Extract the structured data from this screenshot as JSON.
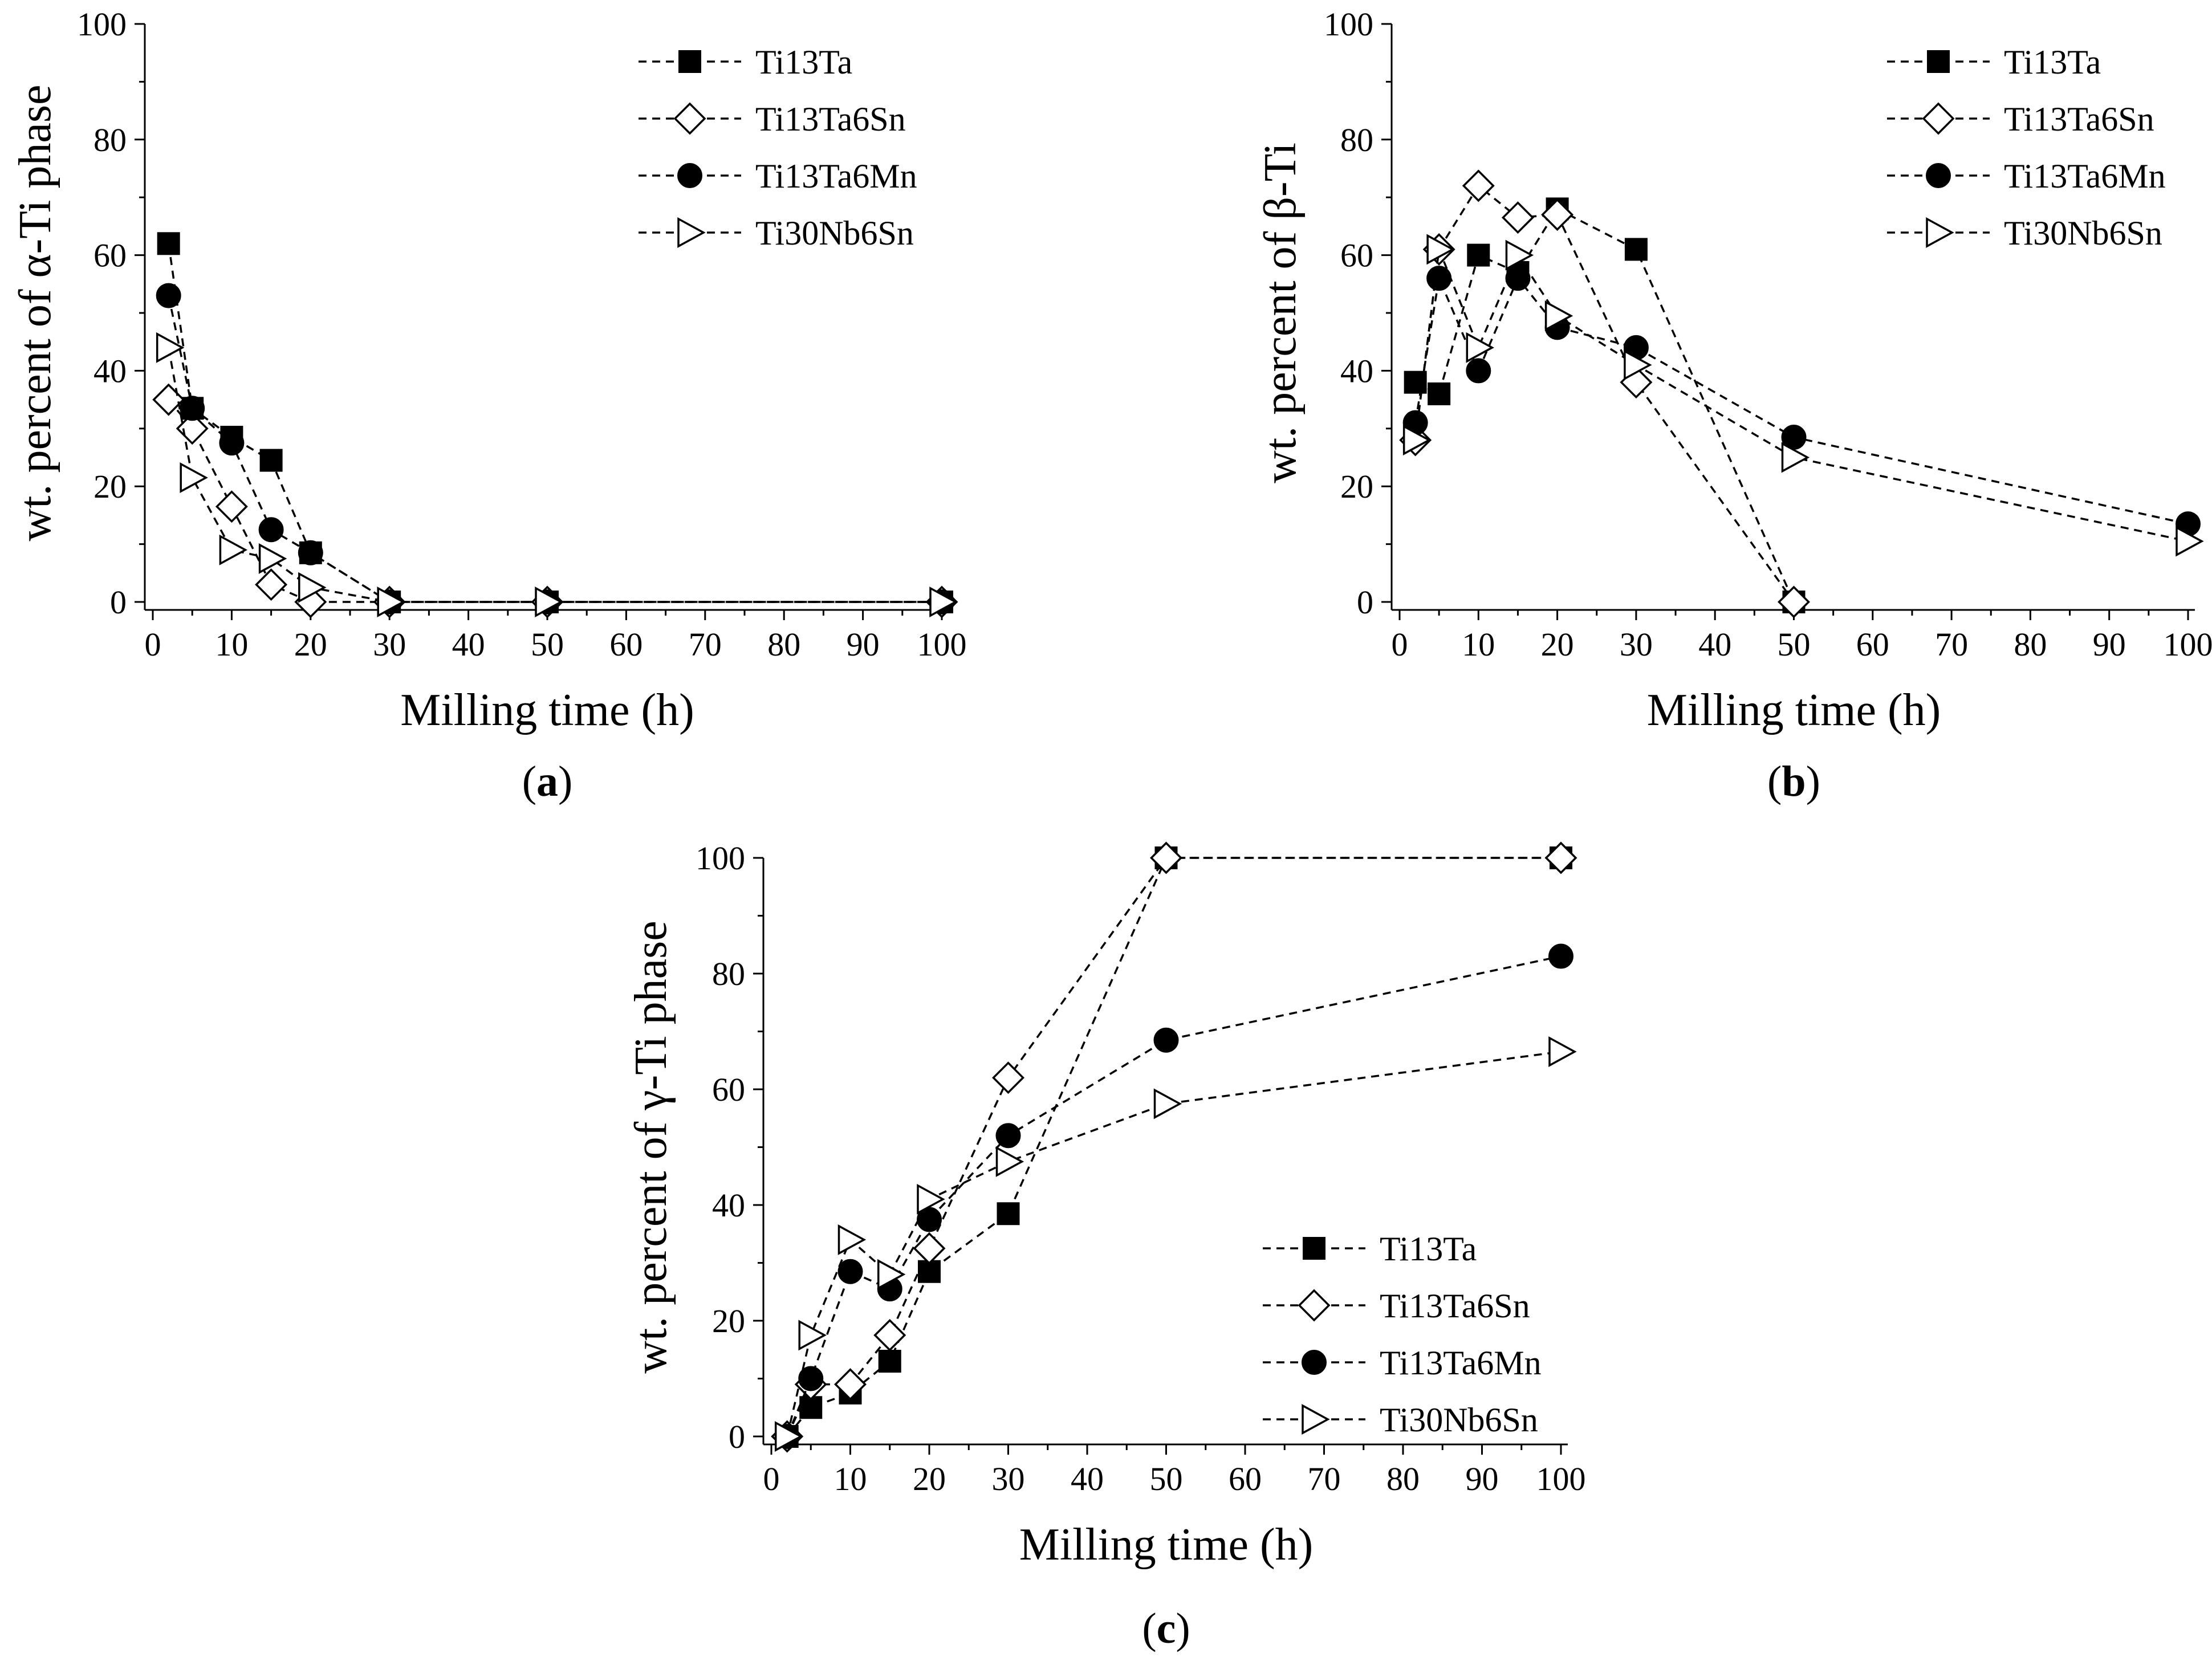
{
  "chart_data": [
    {
      "type": "line",
      "panel": "(a)",
      "panel_letter": "a",
      "xlabel": "Milling time (h)",
      "ylabel": "wt. percent of α-Ti phase",
      "xlim": [
        0,
        100
      ],
      "ylim": [
        0,
        100
      ],
      "xticks": [
        "0",
        "10",
        "20",
        "30",
        "40",
        "50",
        "60",
        "70",
        "80",
        "90",
        "100"
      ],
      "yticks": [
        "0",
        "20",
        "40",
        "60",
        "80",
        "100"
      ],
      "legend_position": "top-right",
      "series": [
        {
          "name": "Ti13Ta",
          "marker": "square-filled",
          "x": [
            2,
            5,
            10,
            15,
            20,
            30,
            50,
            100
          ],
          "y": [
            62,
            33.5,
            28.5,
            24.5,
            8.5,
            0,
            0,
            0
          ]
        },
        {
          "name": "Ti13Ta6Sn",
          "marker": "diamond-open",
          "x": [
            2,
            5,
            10,
            15,
            20,
            30,
            50,
            100
          ],
          "y": [
            35,
            30,
            16.5,
            3,
            0,
            0,
            0,
            0
          ]
        },
        {
          "name": "Ti13Ta6Mn",
          "marker": "circle-filled",
          "x": [
            2,
            5,
            10,
            15,
            20,
            30,
            50,
            100
          ],
          "y": [
            53,
            33.5,
            27.5,
            12.5,
            8.5,
            0,
            0,
            0
          ]
        },
        {
          "name": "Ti30Nb6Sn",
          "marker": "triangle-right-open",
          "x": [
            2,
            5,
            10,
            15,
            20,
            30,
            50,
            100
          ],
          "y": [
            44,
            21.5,
            9,
            7.5,
            2.5,
            0,
            0,
            0
          ]
        }
      ]
    },
    {
      "type": "line",
      "panel": "(b)",
      "panel_letter": "b",
      "xlabel": "Milling time (h)",
      "ylabel": "wt. percent of β-Ti",
      "xlim": [
        0,
        100
      ],
      "ylim": [
        0,
        100
      ],
      "xticks": [
        "0",
        "10",
        "20",
        "30",
        "40",
        "50",
        "60",
        "70",
        "80",
        "90",
        "100"
      ],
      "yticks": [
        "0",
        "20",
        "40",
        "60",
        "80",
        "100"
      ],
      "legend_position": "top-right",
      "series": [
        {
          "name": "Ti13Ta",
          "marker": "square-filled",
          "x": [
            2,
            5,
            10,
            15,
            20,
            30,
            50
          ],
          "y": [
            38,
            36,
            60,
            57,
            68,
            61,
            0
          ]
        },
        {
          "name": "Ti13Ta6Sn",
          "marker": "diamond-open",
          "x": [
            2,
            5,
            10,
            15,
            20,
            30,
            50
          ],
          "y": [
            28,
            61,
            72,
            66.5,
            67,
            38,
            0
          ]
        },
        {
          "name": "Ti13Ta6Mn",
          "marker": "circle-filled",
          "x": [
            2,
            5,
            10,
            15,
            20,
            30,
            50,
            100
          ],
          "y": [
            31,
            56,
            40,
            56,
            47.5,
            44,
            28.5,
            13.5
          ]
        },
        {
          "name": "Ti30Nb6Sn",
          "marker": "triangle-right-open",
          "x": [
            2,
            5,
            10,
            15,
            20,
            30,
            50,
            100
          ],
          "y": [
            28,
            61,
            44,
            60,
            49.5,
            41,
            25,
            10.5
          ]
        }
      ]
    },
    {
      "type": "line",
      "panel": "(c)",
      "panel_letter": "c",
      "xlabel": "Milling time (h)",
      "ylabel": "wt. percent of γ-Ti phase",
      "xlim": [
        0,
        100
      ],
      "ylim": [
        0,
        100
      ],
      "xticks": [
        "0",
        "10",
        "20",
        "30",
        "40",
        "50",
        "60",
        "70",
        "80",
        "90",
        "100"
      ],
      "yticks": [
        "0",
        "20",
        "40",
        "60",
        "80",
        "100"
      ],
      "legend_position": "bottom-right",
      "series": [
        {
          "name": "Ti13Ta",
          "marker": "square-filled",
          "x": [
            2,
            5,
            10,
            15,
            20,
            30,
            50,
            100
          ],
          "y": [
            0,
            5,
            7.5,
            13,
            28.5,
            38.5,
            100,
            100
          ]
        },
        {
          "name": "Ti13Ta6Sn",
          "marker": "diamond-open",
          "x": [
            2,
            5,
            10,
            15,
            20,
            30,
            50,
            100
          ],
          "y": [
            0,
            9,
            9,
            17.5,
            32.5,
            62,
            100,
            100
          ]
        },
        {
          "name": "Ti13Ta6Mn",
          "marker": "circle-filled",
          "x": [
            2,
            5,
            10,
            15,
            20,
            30,
            50,
            100
          ],
          "y": [
            0,
            10,
            28.5,
            25.5,
            37.5,
            52,
            68.5,
            83
          ]
        },
        {
          "name": "Ti30Nb6Sn",
          "marker": "triangle-right-open",
          "x": [
            2,
            5,
            10,
            15,
            20,
            30,
            50,
            100
          ],
          "y": [
            0,
            17.5,
            34,
            28,
            41,
            47.5,
            57.5,
            66.5
          ]
        }
      ]
    }
  ]
}
